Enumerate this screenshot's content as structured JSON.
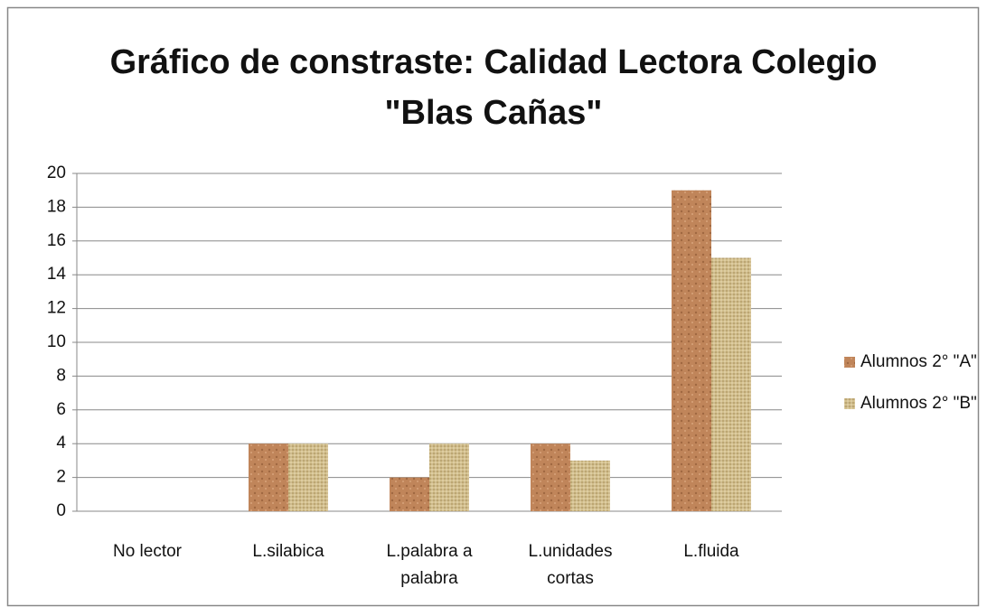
{
  "chart_data": {
    "type": "bar",
    "title": [
      "Gráfico de constraste: Calidad Lectora Colegio",
      "\"Blas Cañas\""
    ],
    "categories": [
      "No lector",
      "L.silabica",
      "L.palabra a palabra",
      "L.unidades cortas",
      "L.fluida"
    ],
    "series": [
      {
        "name": "Alumnos 2° \"A\"",
        "color": "#c0855a",
        "values": [
          0,
          4,
          2,
          4,
          19
        ]
      },
      {
        "name": "Alumnos 2° \"B\"",
        "color": "#d3c08e",
        "values": [
          0,
          4,
          4,
          3,
          15
        ]
      }
    ],
    "ylim": [
      0,
      20
    ],
    "yticks": [
      0,
      2,
      4,
      6,
      8,
      10,
      12,
      14,
      16,
      18,
      20
    ],
    "grid": true,
    "legend": "right"
  }
}
